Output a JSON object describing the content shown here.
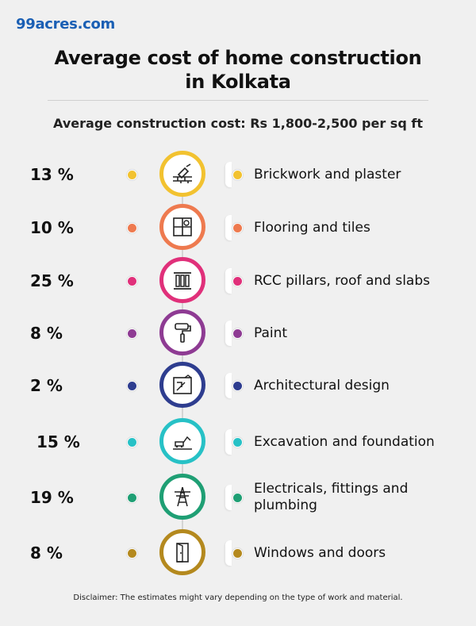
{
  "brand": "99acres.com",
  "title_line1": "Average cost of home construction",
  "title_line2": "in Kolkata",
  "subtitle": "Average construction cost: Rs 1,800-2,500 per sq ft",
  "items": [
    {
      "percent": "13 %",
      "label": "Brickwork and plaster",
      "color": "#f2c230",
      "icon": "trowel-bricks-icon"
    },
    {
      "percent": "10 %",
      "label": "Flooring and tiles",
      "color": "#ee7a4f",
      "icon": "floor-tiles-icon"
    },
    {
      "percent": "25 %",
      "label": "RCC pillars, roof and slabs",
      "color": "#e0307a",
      "icon": "pillars-icon"
    },
    {
      "percent": "8 %",
      "label": "Paint",
      "color": "#8e3b93",
      "icon": "paint-roller-icon"
    },
    {
      "percent": "2 %",
      "label": "Architectural design",
      "color": "#2e3d8f",
      "icon": "blueprint-icon"
    },
    {
      "percent": "15 %",
      "label": "Excavation and foundation",
      "color": "#27c1c6",
      "icon": "excavator-icon"
    },
    {
      "percent": "19 %",
      "label": "Electricals, fittings and plumbing",
      "color": "#1f9f74",
      "icon": "power-tower-icon"
    },
    {
      "percent": "8 %",
      "label": "Windows and doors",
      "color": "#b4891e",
      "icon": "door-icon"
    }
  ],
  "disclaimer": "Disclaimer: The estimates might vary depending on the type of work and material."
}
